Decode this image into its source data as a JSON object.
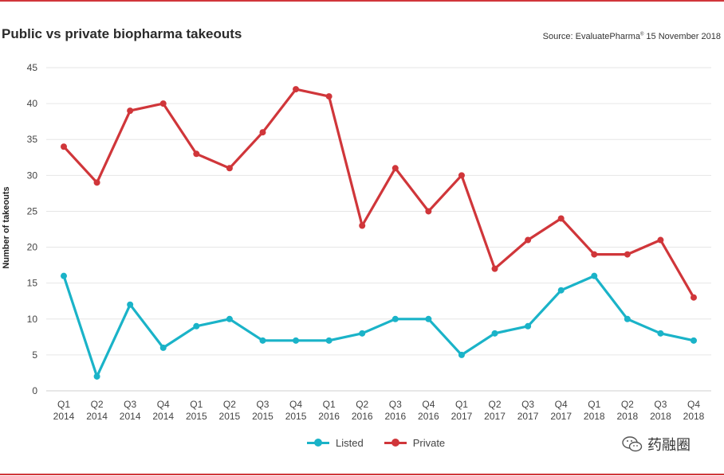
{
  "title": "Public vs private biopharma takeouts",
  "source": {
    "prefix": "Source: EvaluatePharma",
    "mark": "®",
    "suffix": " 15 November 2018"
  },
  "watermark": "药融圈",
  "colors": {
    "listed": "#1ab3c8",
    "private": "#d0363a",
    "accent": "#d0363a"
  },
  "chart_data": {
    "type": "line",
    "ylabel": "Number of takeouts",
    "ylim": [
      0,
      45
    ],
    "yticks": [
      0,
      5,
      10,
      15,
      20,
      25,
      30,
      35,
      40,
      45
    ],
    "grid": true,
    "legend_position": "bottom-center",
    "categories": [
      [
        "Q1",
        "2014"
      ],
      [
        "Q2",
        "2014"
      ],
      [
        "Q3",
        "2014"
      ],
      [
        "Q4",
        "2014"
      ],
      [
        "Q1",
        "2015"
      ],
      [
        "Q2",
        "2015"
      ],
      [
        "Q3",
        "2015"
      ],
      [
        "Q4",
        "2015"
      ],
      [
        "Q1",
        "2016"
      ],
      [
        "Q2",
        "2016"
      ],
      [
        "Q3",
        "2016"
      ],
      [
        "Q4",
        "2016"
      ],
      [
        "Q1",
        "2017"
      ],
      [
        "Q2",
        "2017"
      ],
      [
        "Q3",
        "2017"
      ],
      [
        "Q4",
        "2017"
      ],
      [
        "Q1",
        "2018"
      ],
      [
        "Q2",
        "2018"
      ],
      [
        "Q3",
        "2018"
      ],
      [
        "Q4",
        "2018"
      ]
    ],
    "series": [
      {
        "name": "Listed",
        "color": "#1ab3c8",
        "values": [
          16,
          2,
          12,
          6,
          9,
          10,
          7,
          7,
          7,
          8,
          10,
          10,
          5,
          8,
          9,
          14,
          16,
          10,
          8,
          7
        ]
      },
      {
        "name": "Private",
        "color": "#d0363a",
        "values": [
          34,
          29,
          39,
          40,
          33,
          31,
          36,
          42,
          41,
          23,
          31,
          25,
          30,
          17,
          21,
          24,
          19,
          19,
          21,
          13
        ]
      }
    ]
  }
}
